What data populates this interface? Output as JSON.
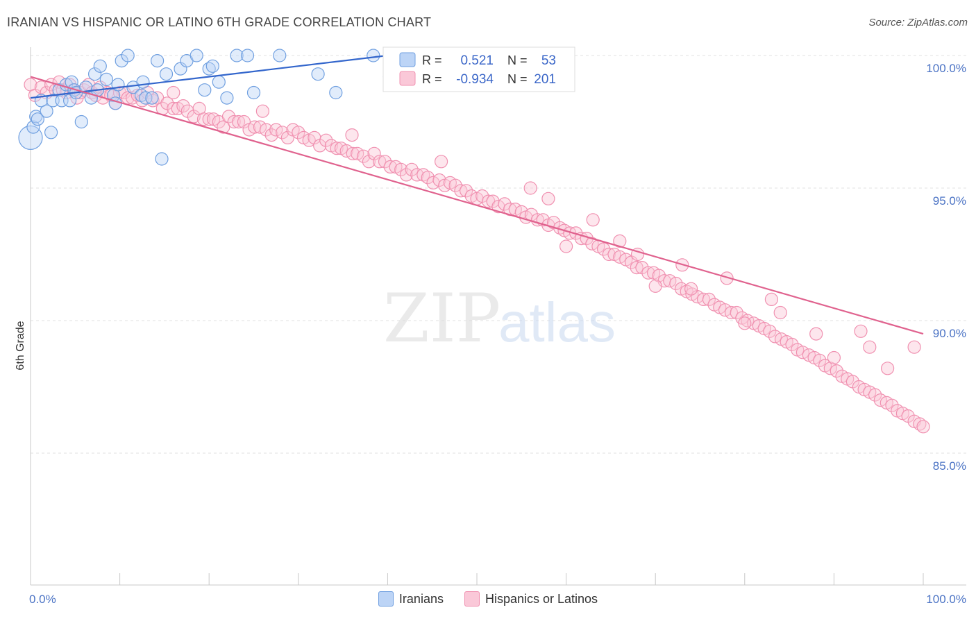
{
  "header": {
    "title": "IRANIAN VS HISPANIC OR LATINO 6TH GRADE CORRELATION CHART",
    "source": "Source: ZipAtlas.com"
  },
  "watermark": {
    "zip": "ZIP",
    "atlas": "atlas"
  },
  "legend": {
    "r_label": "R =",
    "n_label": "N =",
    "rows": [
      {
        "r": "0.521",
        "n": "53"
      },
      {
        "r": "-0.934",
        "n": "201"
      }
    ]
  },
  "bottom_legend": [
    "Iranians",
    "Hispanics or Latinos"
  ],
  "chart_data": {
    "type": "scatter",
    "title": "IRANIAN VS HISPANIC OR LATINO 6TH GRADE CORRELATION CHART",
    "xlabel": "",
    "ylabel": "6th Grade",
    "xlim": [
      0,
      100
    ],
    "ylim": [
      80.5,
      100.8
    ],
    "x_tick_labels": [
      "0.0%",
      "100.0%"
    ],
    "y_tick_labels": [
      "100.0%",
      "95.0%",
      "90.0%",
      "85.0%"
    ],
    "y_ticks": [
      100,
      95,
      90,
      85
    ],
    "grid": true,
    "legend_placement": "top-center",
    "colors": {
      "iranians": "#6f9fe0",
      "hispanics": "#f090b0",
      "iranians_line": "#3366cc",
      "hispanics_line": "#e0628e"
    },
    "series": [
      {
        "name": "Iranians",
        "r": 0.521,
        "n": 53,
        "trend": [
          [
            0,
            98.4
          ],
          [
            40,
            100.0
          ]
        ],
        "points": [
          [
            0.0,
            96.9
          ],
          [
            0.3,
            97.3
          ],
          [
            0.6,
            97.7
          ],
          [
            0.8,
            97.6
          ],
          [
            1.2,
            98.3
          ],
          [
            1.8,
            97.9
          ],
          [
            2.3,
            97.1
          ],
          [
            2.5,
            98.3
          ],
          [
            3.2,
            98.7
          ],
          [
            3.5,
            98.3
          ],
          [
            4.0,
            98.9
          ],
          [
            4.4,
            98.3
          ],
          [
            4.6,
            99.0
          ],
          [
            4.9,
            98.7
          ],
          [
            5.1,
            98.6
          ],
          [
            5.7,
            97.5
          ],
          [
            6.2,
            98.8
          ],
          [
            6.8,
            98.4
          ],
          [
            7.2,
            99.3
          ],
          [
            7.5,
            98.7
          ],
          [
            7.8,
            99.6
          ],
          [
            8.5,
            99.1
          ],
          [
            9.3,
            98.5
          ],
          [
            9.5,
            98.2
          ],
          [
            9.8,
            98.9
          ],
          [
            10.2,
            99.8
          ],
          [
            10.9,
            100.0
          ],
          [
            11.5,
            98.8
          ],
          [
            12.4,
            98.5
          ],
          [
            12.6,
            99.0
          ],
          [
            12.9,
            98.4
          ],
          [
            13.6,
            98.4
          ],
          [
            14.2,
            99.8
          ],
          [
            14.7,
            96.1
          ],
          [
            15.2,
            99.3
          ],
          [
            16.8,
            99.5
          ],
          [
            17.5,
            99.8
          ],
          [
            18.6,
            100.0
          ],
          [
            19.5,
            98.7
          ],
          [
            20.0,
            99.5
          ],
          [
            20.4,
            99.6
          ],
          [
            21.1,
            99.0
          ],
          [
            22.0,
            98.4
          ],
          [
            23.1,
            100.0
          ],
          [
            24.3,
            100.0
          ],
          [
            25.0,
            98.6
          ],
          [
            27.9,
            100.0
          ],
          [
            32.2,
            99.3
          ],
          [
            34.2,
            98.6
          ],
          [
            38.4,
            100.0
          ],
          [
            40.2,
            99.2
          ],
          [
            43.4,
            100.0
          ],
          [
            52.2,
            100.0
          ]
        ]
      },
      {
        "name": "Hispanics or Latinos",
        "r": -0.934,
        "n": 201,
        "trend": [
          [
            0,
            99.2
          ],
          [
            100,
            89.5
          ]
        ],
        "points": [
          [
            0.0,
            98.9
          ],
          [
            0.5,
            98.5
          ],
          [
            1.2,
            98.8
          ],
          [
            1.8,
            98.6
          ],
          [
            2.3,
            98.9
          ],
          [
            2.8,
            98.7
          ],
          [
            3.2,
            99.0
          ],
          [
            3.6,
            98.7
          ],
          [
            4.0,
            98.6
          ],
          [
            4.4,
            98.9
          ],
          [
            4.8,
            98.7
          ],
          [
            5.2,
            98.4
          ],
          [
            5.6,
            98.6
          ],
          [
            6.0,
            98.7
          ],
          [
            6.5,
            98.9
          ],
          [
            6.9,
            98.6
          ],
          [
            7.3,
            98.5
          ],
          [
            7.8,
            98.8
          ],
          [
            8.1,
            98.4
          ],
          [
            8.6,
            98.6
          ],
          [
            9.0,
            98.5
          ],
          [
            9.5,
            98.2
          ],
          [
            10.0,
            98.6
          ],
          [
            10.5,
            98.6
          ],
          [
            10.9,
            98.4
          ],
          [
            11.4,
            98.4
          ],
          [
            12.0,
            98.5
          ],
          [
            12.5,
            98.3
          ],
          [
            13.1,
            98.6
          ],
          [
            13.7,
            98.3
          ],
          [
            14.2,
            98.4
          ],
          [
            14.8,
            98.0
          ],
          [
            15.3,
            98.2
          ],
          [
            16.0,
            98.0
          ],
          [
            16.5,
            98.0
          ],
          [
            17.1,
            98.1
          ],
          [
            17.6,
            97.9
          ],
          [
            18.3,
            97.7
          ],
          [
            18.9,
            98.0
          ],
          [
            19.4,
            97.6
          ],
          [
            20.0,
            97.6
          ],
          [
            20.5,
            97.6
          ],
          [
            21.1,
            97.5
          ],
          [
            21.6,
            97.3
          ],
          [
            22.2,
            97.7
          ],
          [
            22.8,
            97.5
          ],
          [
            23.3,
            97.5
          ],
          [
            23.9,
            97.5
          ],
          [
            24.5,
            97.2
          ],
          [
            25.1,
            97.3
          ],
          [
            25.7,
            97.3
          ],
          [
            26.4,
            97.2
          ],
          [
            27.0,
            97.0
          ],
          [
            27.5,
            97.2
          ],
          [
            28.2,
            97.1
          ],
          [
            28.8,
            96.9
          ],
          [
            29.4,
            97.2
          ],
          [
            30.0,
            97.1
          ],
          [
            30.6,
            96.9
          ],
          [
            31.2,
            96.8
          ],
          [
            31.8,
            96.9
          ],
          [
            32.4,
            96.6
          ],
          [
            33.1,
            96.8
          ],
          [
            33.7,
            96.6
          ],
          [
            34.3,
            96.5
          ],
          [
            34.8,
            96.5
          ],
          [
            35.4,
            96.4
          ],
          [
            36.1,
            96.3
          ],
          [
            36.6,
            96.3
          ],
          [
            37.3,
            96.2
          ],
          [
            37.9,
            96.0
          ],
          [
            38.5,
            96.3
          ],
          [
            39.1,
            96.0
          ],
          [
            39.7,
            96.0
          ],
          [
            40.3,
            95.8
          ],
          [
            40.9,
            95.8
          ],
          [
            41.5,
            95.7
          ],
          [
            42.1,
            95.5
          ],
          [
            42.7,
            95.7
          ],
          [
            43.3,
            95.5
          ],
          [
            44.0,
            95.5
          ],
          [
            44.5,
            95.4
          ],
          [
            45.1,
            95.2
          ],
          [
            45.8,
            95.3
          ],
          [
            46.4,
            95.1
          ],
          [
            47.0,
            95.2
          ],
          [
            47.6,
            95.1
          ],
          [
            48.2,
            94.9
          ],
          [
            48.8,
            94.9
          ],
          [
            49.4,
            94.7
          ],
          [
            50.0,
            94.6
          ],
          [
            50.6,
            94.7
          ],
          [
            51.3,
            94.5
          ],
          [
            51.8,
            94.5
          ],
          [
            52.4,
            94.3
          ],
          [
            53.1,
            94.4
          ],
          [
            53.7,
            94.2
          ],
          [
            54.3,
            94.2
          ],
          [
            55.0,
            94.1
          ],
          [
            55.5,
            93.9
          ],
          [
            56.1,
            94.0
          ],
          [
            56.8,
            93.8
          ],
          [
            57.4,
            93.8
          ],
          [
            58.0,
            93.6
          ],
          [
            58.6,
            93.7
          ],
          [
            59.3,
            93.5
          ],
          [
            59.8,
            93.4
          ],
          [
            60.4,
            93.3
          ],
          [
            61.1,
            93.3
          ],
          [
            61.7,
            93.1
          ],
          [
            62.3,
            93.1
          ],
          [
            62.9,
            92.9
          ],
          [
            63.6,
            92.8
          ],
          [
            64.2,
            92.7
          ],
          [
            64.8,
            92.5
          ],
          [
            65.4,
            92.5
          ],
          [
            66.0,
            92.4
          ],
          [
            66.7,
            92.3
          ],
          [
            67.3,
            92.2
          ],
          [
            67.9,
            92.0
          ],
          [
            68.5,
            92.0
          ],
          [
            69.2,
            91.8
          ],
          [
            69.8,
            91.8
          ],
          [
            70.4,
            91.7
          ],
          [
            71.0,
            91.5
          ],
          [
            71.6,
            91.5
          ],
          [
            72.3,
            91.4
          ],
          [
            72.9,
            91.2
          ],
          [
            73.5,
            91.1
          ],
          [
            74.1,
            91.0
          ],
          [
            74.7,
            90.9
          ],
          [
            75.4,
            90.8
          ],
          [
            76.0,
            90.8
          ],
          [
            76.6,
            90.6
          ],
          [
            77.2,
            90.5
          ],
          [
            77.8,
            90.4
          ],
          [
            78.5,
            90.3
          ],
          [
            79.1,
            90.3
          ],
          [
            79.7,
            90.1
          ],
          [
            80.3,
            90.0
          ],
          [
            81.0,
            89.9
          ],
          [
            81.6,
            89.8
          ],
          [
            82.2,
            89.7
          ],
          [
            82.8,
            89.6
          ],
          [
            83.4,
            89.4
          ],
          [
            84.1,
            89.3
          ],
          [
            84.7,
            89.2
          ],
          [
            85.3,
            89.1
          ],
          [
            85.9,
            88.9
          ],
          [
            86.5,
            88.8
          ],
          [
            87.2,
            88.7
          ],
          [
            87.8,
            88.6
          ],
          [
            88.4,
            88.5
          ],
          [
            89.0,
            88.3
          ],
          [
            89.6,
            88.2
          ],
          [
            90.3,
            88.1
          ],
          [
            90.9,
            87.9
          ],
          [
            91.5,
            87.8
          ],
          [
            92.1,
            87.7
          ],
          [
            92.8,
            87.5
          ],
          [
            93.4,
            87.4
          ],
          [
            94.0,
            87.3
          ],
          [
            94.6,
            87.2
          ],
          [
            95.2,
            87.0
          ],
          [
            95.9,
            86.9
          ],
          [
            96.5,
            86.8
          ],
          [
            97.1,
            86.6
          ],
          [
            97.7,
            86.5
          ],
          [
            98.3,
            86.4
          ],
          [
            99.0,
            86.2
          ],
          [
            99.6,
            86.1
          ],
          [
            100.0,
            86.0
          ],
          [
            60.0,
            92.8
          ],
          [
            70.0,
            91.3
          ],
          [
            80.0,
            89.9
          ],
          [
            90.0,
            88.6
          ],
          [
            58.0,
            94.6
          ],
          [
            66.0,
            93.0
          ],
          [
            74.0,
            91.2
          ],
          [
            84.0,
            90.3
          ],
          [
            94.0,
            89.0
          ],
          [
            63.0,
            93.8
          ],
          [
            73.0,
            92.1
          ],
          [
            83.0,
            90.8
          ],
          [
            93.0,
            89.6
          ],
          [
            99.0,
            89.0
          ],
          [
            96.0,
            88.2
          ],
          [
            88.0,
            89.5
          ],
          [
            78.0,
            91.6
          ],
          [
            68.0,
            92.5
          ],
          [
            56.0,
            95.0
          ],
          [
            46.0,
            96.0
          ],
          [
            36.0,
            97.0
          ],
          [
            26.0,
            97.9
          ],
          [
            16.0,
            98.6
          ]
        ]
      }
    ]
  }
}
